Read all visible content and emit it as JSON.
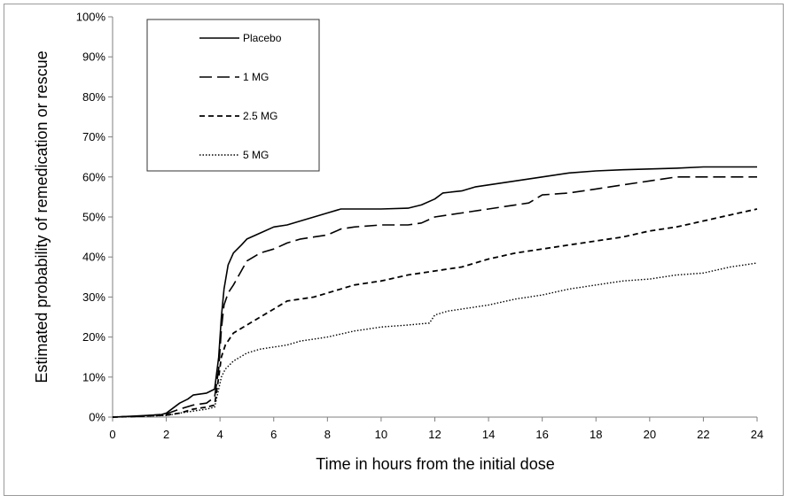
{
  "chart_data": {
    "type": "line",
    "title": "",
    "xlabel": "Time in hours from the initial dose",
    "ylabel": "Estimated probability of remedication or rescue",
    "xlim": [
      0,
      24
    ],
    "ylim": [
      0,
      100
    ],
    "x_ticks": [
      "0",
      "2",
      "4",
      "6",
      "8",
      "10",
      "12",
      "14",
      "16",
      "18",
      "20",
      "22",
      "24"
    ],
    "y_ticks": [
      "0%",
      "10%",
      "20%",
      "30%",
      "40%",
      "50%",
      "60%",
      "70%",
      "80%",
      "90%",
      "100%"
    ],
    "grid": false,
    "legend_position": "top-left",
    "series": [
      {
        "name": "Placebo",
        "style": "solid",
        "color": "#000000",
        "x": [
          0,
          1.0,
          1.8,
          2.0,
          2.3,
          2.5,
          2.8,
          3.0,
          3.5,
          3.8,
          3.95,
          4.05,
          4.15,
          4.3,
          4.5,
          4.8,
          5.0,
          5.5,
          6.0,
          6.5,
          7.0,
          7.5,
          8.0,
          8.5,
          9.0,
          10.0,
          11.0,
          11.5,
          12.0,
          12.3,
          13.0,
          13.5,
          14.0,
          15.0,
          16.0,
          17.0,
          18.0,
          19.0,
          20.0,
          21.0,
          22.0,
          23.0,
          24.0
        ],
        "y": [
          0,
          0.3,
          0.6,
          1.0,
          2.5,
          3.5,
          4.5,
          5.5,
          6.0,
          7.0,
          15.0,
          25.0,
          32.0,
          38.0,
          41.0,
          43.0,
          44.5,
          46.0,
          47.5,
          48.0,
          49.0,
          50.0,
          51.0,
          52.0,
          52.0,
          52.0,
          52.2,
          53.0,
          54.5,
          56.0,
          56.5,
          57.5,
          58.0,
          59.0,
          60.0,
          61.0,
          61.5,
          61.8,
          62.0,
          62.2,
          62.5,
          62.5,
          62.5
        ]
      },
      {
        "name": "1 MG",
        "style": "long-dash",
        "color": "#000000",
        "x": [
          0,
          1.0,
          2.0,
          2.5,
          3.0,
          3.5,
          3.8,
          3.95,
          4.05,
          4.15,
          4.3,
          4.5,
          5.0,
          5.5,
          6.0,
          6.5,
          7.0,
          7.5,
          8.0,
          8.5,
          9.0,
          10.0,
          11.0,
          11.5,
          12.0,
          13.0,
          14.0,
          15.0,
          15.5,
          16.0,
          17.0,
          18.0,
          19.0,
          20.0,
          20.5,
          21.0,
          22.0,
          23.0,
          24.0
        ],
        "y": [
          0,
          0.2,
          0.8,
          2.0,
          3.0,
          3.5,
          5.0,
          12.0,
          22.0,
          28.0,
          31.0,
          33.0,
          39.0,
          41.0,
          42.0,
          43.5,
          44.5,
          45.0,
          45.5,
          47.0,
          47.5,
          48.0,
          48.0,
          48.5,
          50.0,
          51.0,
          52.0,
          53.0,
          53.5,
          55.5,
          56.0,
          57.0,
          58.0,
          59.0,
          59.5,
          60.0,
          60.0,
          60.0,
          60.0
        ]
      },
      {
        "name": "2.5 MG",
        "style": "short-dash",
        "color": "#000000",
        "x": [
          0,
          1.0,
          2.0,
          2.5,
          3.0,
          3.5,
          3.8,
          3.95,
          4.05,
          4.2,
          4.5,
          5.0,
          5.5,
          6.0,
          6.5,
          7.0,
          7.5,
          8.0,
          9.0,
          10.0,
          11.0,
          12.0,
          13.0,
          14.0,
          15.0,
          16.0,
          17.0,
          18.0,
          19.0,
          20.0,
          21.0,
          22.0,
          23.0,
          24.0
        ],
        "y": [
          0,
          0.2,
          0.5,
          1.0,
          2.0,
          2.5,
          3.0,
          10.0,
          15.0,
          18.0,
          21.0,
          23.0,
          25.0,
          27.0,
          29.0,
          29.5,
          30.0,
          31.0,
          33.0,
          34.0,
          35.5,
          36.5,
          37.5,
          39.5,
          41.0,
          42.0,
          43.0,
          44.0,
          45.0,
          46.5,
          47.5,
          49.0,
          50.5,
          52.0
        ]
      },
      {
        "name": "5 MG",
        "style": "dotted",
        "color": "#000000",
        "x": [
          0,
          1.0,
          2.0,
          2.5,
          3.0,
          3.5,
          3.8,
          3.95,
          4.05,
          4.2,
          4.5,
          5.0,
          5.5,
          6.0,
          6.5,
          7.0,
          7.5,
          8.0,
          9.0,
          10.0,
          11.0,
          11.8,
          12.0,
          12.5,
          13.0,
          14.0,
          15.0,
          16.0,
          17.0,
          18.0,
          19.0,
          20.0,
          21.0,
          22.0,
          23.0,
          24.0
        ],
        "y": [
          0,
          0.2,
          0.4,
          1.0,
          1.5,
          2.0,
          2.5,
          7.0,
          10.0,
          12.0,
          14.0,
          16.0,
          17.0,
          17.5,
          18.0,
          19.0,
          19.5,
          20.0,
          21.5,
          22.5,
          23.0,
          23.5,
          25.5,
          26.5,
          27.0,
          28.0,
          29.5,
          30.5,
          32.0,
          33.0,
          34.0,
          34.5,
          35.5,
          36.0,
          37.5,
          38.5
        ]
      }
    ]
  }
}
